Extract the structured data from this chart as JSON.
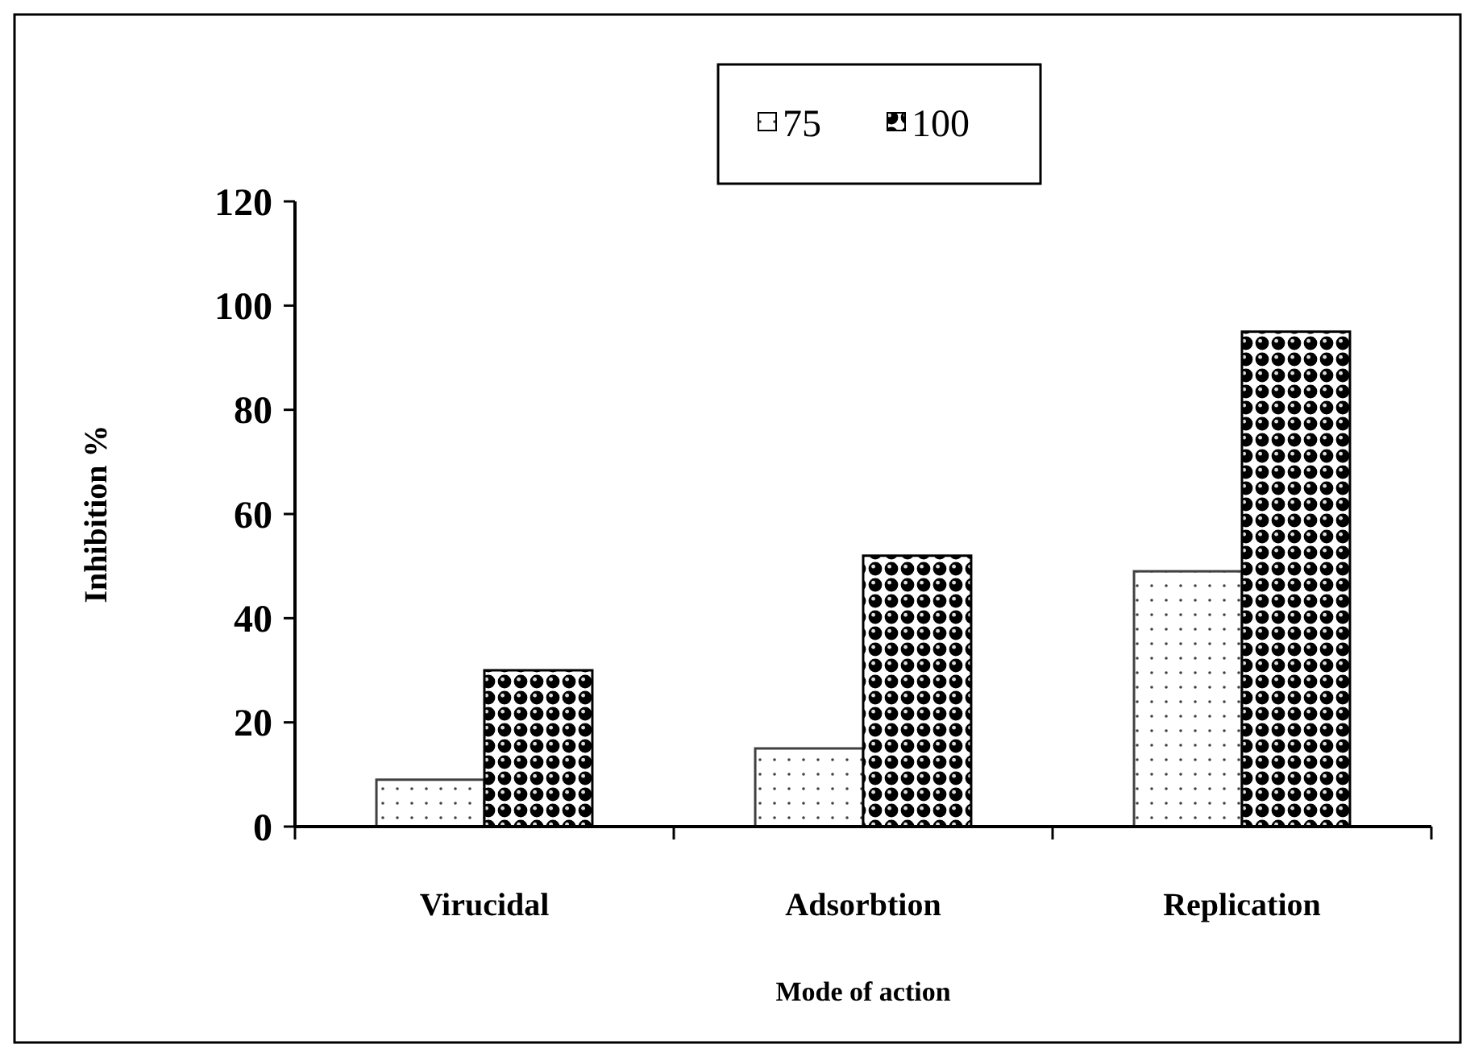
{
  "chart_data": {
    "type": "bar",
    "xlabel": "Mode of action",
    "ylabel": "Inhibition %",
    "categories": [
      "Virucidal",
      "Adsorbtion",
      "Replication"
    ],
    "series": [
      {
        "name": "75",
        "color": "#404040",
        "values": [
          9,
          15,
          49
        ]
      },
      {
        "name": "100",
        "color": "#000000",
        "values": [
          30,
          52,
          95
        ]
      }
    ],
    "ylim": [
      0,
      120
    ],
    "yticks": [
      0,
      20,
      40,
      60,
      80,
      100,
      120
    ],
    "grid": false,
    "legend": "top"
  }
}
